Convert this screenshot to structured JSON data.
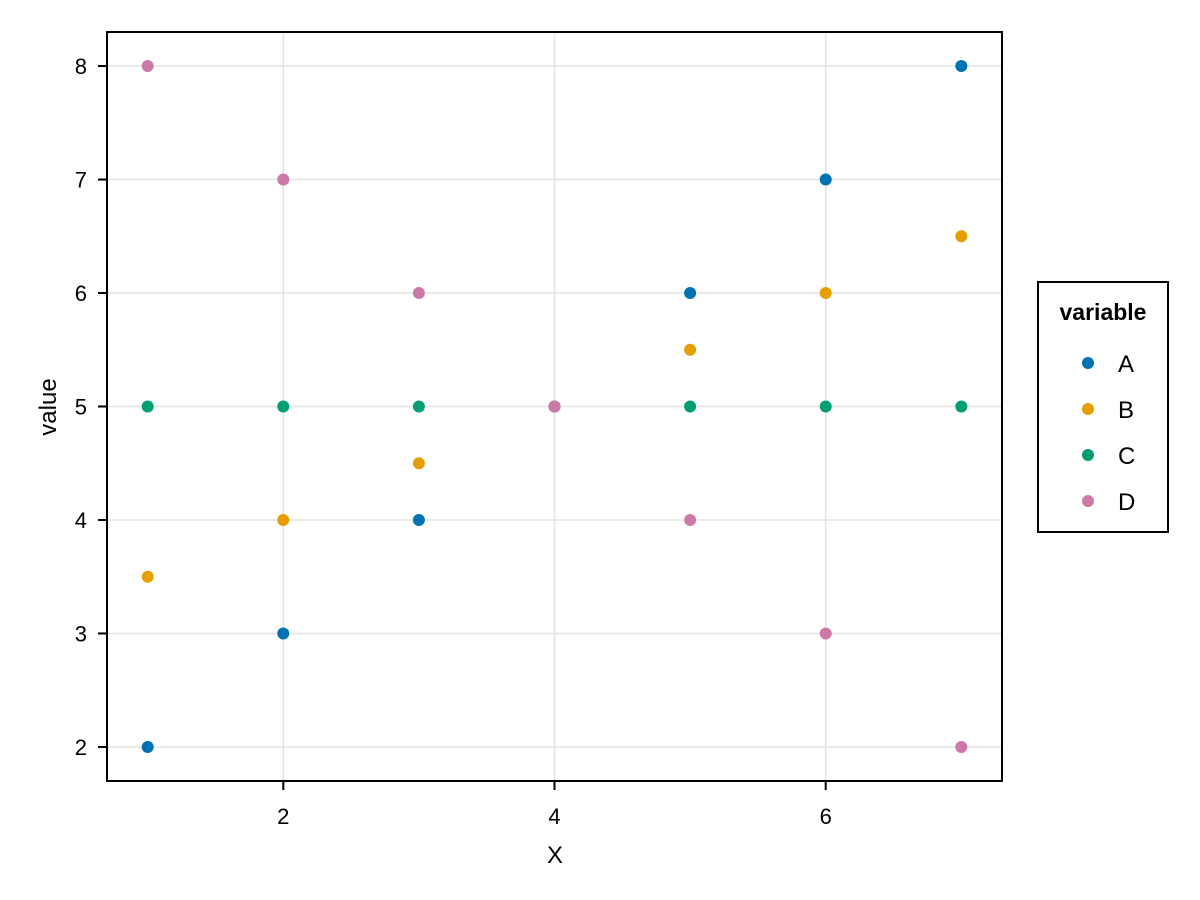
{
  "chart_data": {
    "type": "scatter",
    "title": "",
    "xlabel": "X",
    "ylabel": "value",
    "xlim": [
      0.7,
      7.3
    ],
    "ylim": [
      1.7,
      8.3
    ],
    "xticks": [
      2,
      4,
      6
    ],
    "yticks": [
      2,
      3,
      4,
      5,
      6,
      7,
      8
    ],
    "grid": true,
    "legend_title": "variable",
    "legend_position": "right",
    "x": [
      1,
      2,
      3,
      4,
      5,
      6,
      7
    ],
    "series": [
      {
        "name": "A",
        "color": "#0072B2",
        "values": [
          2,
          3,
          4,
          5,
          6,
          7,
          8
        ]
      },
      {
        "name": "B",
        "color": "#E69F00",
        "values": [
          3.5,
          4,
          4.5,
          5,
          5.5,
          6,
          6.5
        ]
      },
      {
        "name": "C",
        "color": "#009E73",
        "values": [
          5,
          5,
          5,
          5,
          5,
          5,
          5
        ]
      },
      {
        "name": "D",
        "color": "#CC79A7",
        "values": [
          8,
          7,
          6,
          5,
          4,
          3,
          2
        ]
      }
    ]
  }
}
